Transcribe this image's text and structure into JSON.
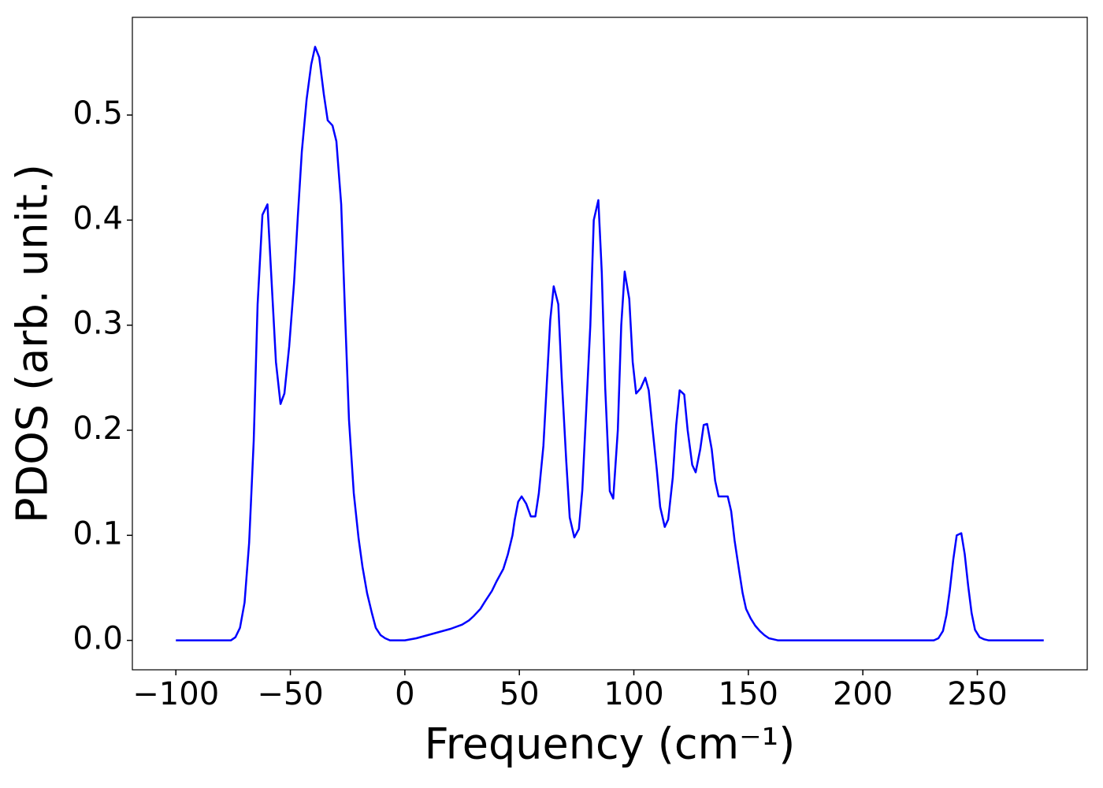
{
  "chart_data": {
    "type": "line",
    "xlabel": "Frequency (cm⁻¹)",
    "ylabel": "PDOS (arb. unit.)",
    "xlim": [
      -119,
      298
    ],
    "ylim": [
      -0.028,
      0.593
    ],
    "xticks": [
      {
        "value": -100,
        "label": "−100"
      },
      {
        "value": -50,
        "label": "−50"
      },
      0,
      50,
      100,
      150,
      200,
      250
    ],
    "yticks": [
      {
        "value": 0,
        "label": "0.0"
      },
      0.1,
      0.2,
      0.3,
      0.4,
      0.5
    ],
    "series": [
      {
        "color": "#0000ff",
        "x": [
          -100,
          -90,
          -80,
          -76,
          -74,
          -72,
          -70,
          -68,
          -66,
          -64.3,
          -62.2,
          -60,
          -58.4,
          -56.3,
          -54.3,
          -52.6,
          -50.5,
          -48.4,
          -46.7,
          -45,
          -42.9,
          -40.9,
          -39.2,
          -37.4,
          -35.4,
          -33.7,
          -31.6,
          -29.9,
          -27.8,
          -26.1,
          -24.4,
          -22.3,
          -20.2,
          -18.5,
          -16.5,
          -14.4,
          -12.7,
          -10.6,
          -8.6,
          -6.5,
          0,
          5,
          10,
          15,
          20,
          25,
          28,
          30,
          33,
          35,
          38,
          40,
          43,
          45,
          47,
          48,
          49.5,
          51,
          53,
          55,
          57,
          58.5,
          60.5,
          62,
          63.5,
          65,
          67,
          68.5,
          70.5,
          72,
          74,
          76,
          77.5,
          79,
          81,
          82.5,
          84.5,
          86,
          87.5,
          89.5,
          91,
          93,
          94.5,
          96,
          98,
          99.5,
          101,
          103,
          105,
          106.5,
          108,
          110,
          111.5,
          113.5,
          115,
          117,
          118.5,
          120,
          122,
          123.5,
          125.5,
          127,
          129,
          130.5,
          132,
          134,
          135.5,
          137,
          139,
          141,
          142.5,
          144,
          146,
          147.5,
          149,
          151,
          153,
          155,
          157,
          159,
          161,
          163,
          200,
          231,
          233,
          235,
          236.5,
          238,
          239.5,
          241,
          243,
          244.5,
          246,
          247.5,
          249,
          251,
          253,
          255,
          279
        ],
        "values": [
          0,
          0,
          0,
          0,
          0.003,
          0.012,
          0.036,
          0.093,
          0.19,
          0.32,
          0.405,
          0.415,
          0.35,
          0.265,
          0.225,
          0.235,
          0.28,
          0.34,
          0.405,
          0.465,
          0.515,
          0.548,
          0.565,
          0.555,
          0.52,
          0.495,
          0.49,
          0.475,
          0.415,
          0.31,
          0.21,
          0.14,
          0.097,
          0.07,
          0.045,
          0.026,
          0.012,
          0.005,
          0.002,
          0,
          0,
          0.002,
          0.005,
          0.008,
          0.011,
          0.015,
          0.019,
          0.023,
          0.03,
          0.037,
          0.047,
          0.056,
          0.068,
          0.082,
          0.1,
          0.115,
          0.132,
          0.137,
          0.13,
          0.118,
          0.118,
          0.14,
          0.185,
          0.245,
          0.305,
          0.337,
          0.32,
          0.25,
          0.17,
          0.117,
          0.098,
          0.106,
          0.143,
          0.21,
          0.3,
          0.4,
          0.419,
          0.35,
          0.24,
          0.142,
          0.135,
          0.2,
          0.3,
          0.351,
          0.325,
          0.265,
          0.235,
          0.24,
          0.25,
          0.238,
          0.205,
          0.163,
          0.127,
          0.108,
          0.115,
          0.155,
          0.205,
          0.238,
          0.234,
          0.2,
          0.167,
          0.16,
          0.182,
          0.205,
          0.206,
          0.182,
          0.152,
          0.137,
          0.137,
          0.137,
          0.123,
          0.095,
          0.066,
          0.045,
          0.03,
          0.021,
          0.014,
          0.009,
          0.005,
          0.002,
          0.001,
          0,
          0,
          0,
          0.002,
          0.009,
          0.024,
          0.048,
          0.077,
          0.1,
          0.102,
          0.082,
          0.052,
          0.026,
          0.01,
          0.003,
          0.001,
          0,
          0
        ]
      }
    ]
  }
}
